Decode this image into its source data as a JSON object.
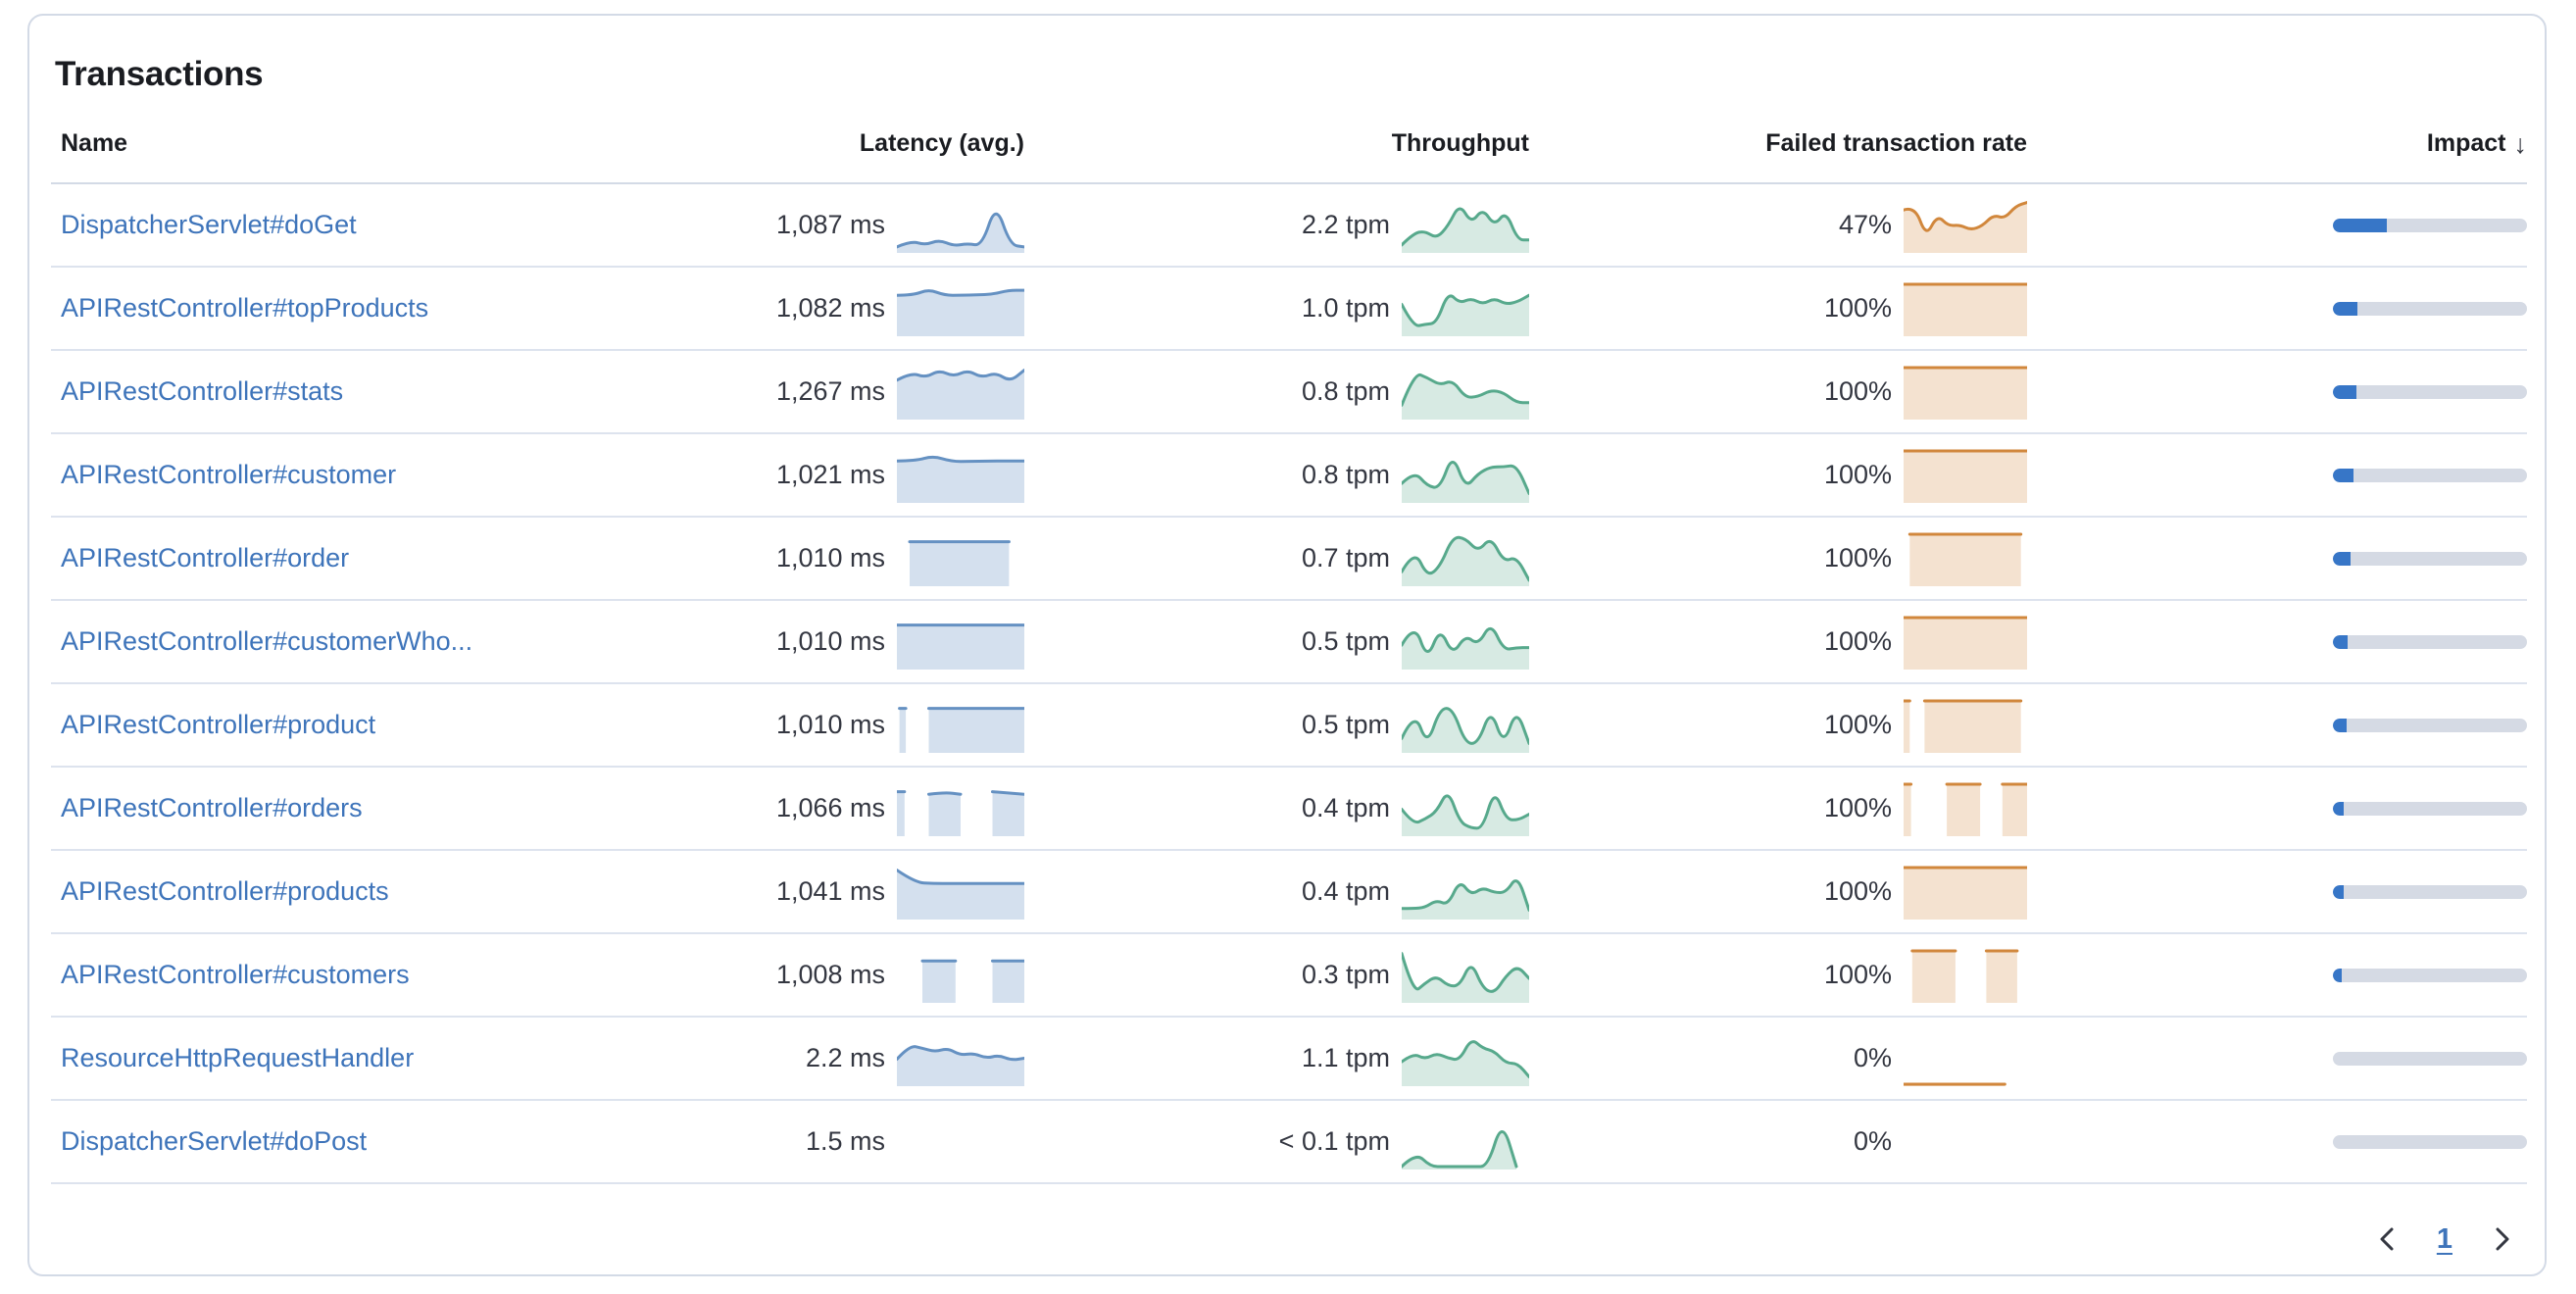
{
  "panel": {
    "title": "Transactions"
  },
  "table": {
    "columns": [
      {
        "label": "Name"
      },
      {
        "label": "Latency (avg.)"
      },
      {
        "label": "Throughput"
      },
      {
        "label": "Failed transaction rate"
      },
      {
        "label": "Impact",
        "sort": "descending",
        "sort_icon": "↓"
      }
    ],
    "rows": [
      {
        "name": "DispatcherServlet#doGet",
        "latency": "1,087 ms",
        "throughput": "2.2 tpm",
        "failed_rate": "47%",
        "impact_pct": 28,
        "latency_spark": [
          {
            "span": [
              0,
              1
            ],
            "v": [
              0.08,
              0.2,
              0.12,
              0.22,
              0.1,
              0.15,
              0.1,
              0.95,
              0.12,
              0.08
            ]
          }
        ],
        "throughput_spark": [
          {
            "span": [
              0,
              1
            ],
            "v": [
              0.12,
              0.35,
              0.4,
              0.25,
              0.5,
              0.95,
              0.55,
              0.85,
              0.5,
              0.8,
              0.22,
              0.22
            ]
          }
        ],
        "failed_spark": [
          {
            "span": [
              0,
              1
            ],
            "v": [
              0.82,
              0.9,
              0.28,
              0.72,
              0.5,
              0.52,
              0.42,
              0.5,
              0.72,
              0.65,
              0.9,
              0.97
            ]
          }
        ]
      },
      {
        "name": "APIRestController#topProducts",
        "latency": "1,082 ms",
        "throughput": "1.0 tpm",
        "failed_rate": "100%",
        "impact_pct": 12.5,
        "latency_spark": [
          {
            "span": [
              0,
              1
            ],
            "v": [
              0.78,
              0.78,
              0.9,
              0.78,
              0.78,
              0.79,
              0.8,
              0.88,
              0.88
            ]
          }
        ],
        "throughput_spark": [
          {
            "span": [
              0,
              1
            ],
            "v": [
              0.6,
              0.15,
              0.2,
              0.22,
              0.85,
              0.62,
              0.72,
              0.6,
              0.72,
              0.6,
              0.65,
              0.78
            ]
          }
        ],
        "failed_spark": [
          {
            "span": [
              0,
              1
            ],
            "v": [
              1,
              1,
              1,
              1
            ]
          }
        ]
      },
      {
        "name": "APIRestController#stats",
        "latency": "1,267 ms",
        "throughput": "0.8 tpm",
        "failed_rate": "100%",
        "impact_pct": 12,
        "latency_spark": [
          {
            "span": [
              0,
              1
            ],
            "v": [
              0.75,
              0.9,
              0.8,
              0.95,
              0.82,
              0.95,
              0.8,
              0.9,
              0.72,
              0.95
            ]
          }
        ],
        "throughput_spark": [
          {
            "span": [
              0,
              1
            ],
            "v": [
              0.25,
              0.9,
              0.8,
              0.65,
              0.75,
              0.4,
              0.42,
              0.55,
              0.5,
              0.3,
              0.3
            ]
          }
        ],
        "failed_spark": [
          {
            "span": [
              0,
              1
            ],
            "v": [
              1,
              1,
              1,
              1
            ]
          }
        ]
      },
      {
        "name": "APIRestController#customer",
        "latency": "1,021 ms",
        "throughput": "0.8 tpm",
        "failed_rate": "100%",
        "impact_pct": 10.5,
        "latency_spark": [
          {
            "span": [
              0,
              1
            ],
            "v": [
              0.8,
              0.8,
              0.9,
              0.79,
              0.79,
              0.8,
              0.8,
              0.8
            ]
          }
        ],
        "throughput_spark": [
          {
            "span": [
              0,
              1
            ],
            "v": [
              0.35,
              0.6,
              0.3,
              0.25,
              0.95,
              0.25,
              0.55,
              0.68,
              0.68,
              0.72,
              0.15
            ]
          }
        ],
        "failed_spark": [
          {
            "span": [
              0,
              1
            ],
            "v": [
              1,
              1,
              1,
              1
            ]
          }
        ]
      },
      {
        "name": "APIRestController#order",
        "latency": "1,010 ms",
        "throughput": "0.7 tpm",
        "failed_rate": "100%",
        "impact_pct": 9,
        "latency_spark": [
          {
            "span": [
              0.1,
              0.88
            ],
            "v": [
              0.85,
              0.85,
              0.85
            ]
          }
        ],
        "throughput_spark": [
          {
            "span": [
              0,
              1
            ],
            "v": [
              0.25,
              0.7,
              0.15,
              0.35,
              0.95,
              0.92,
              0.65,
              0.95,
              0.45,
              0.55,
              0.08
            ]
          }
        ],
        "failed_spark": [
          {
            "span": [
              0.05,
              0.95
            ],
            "v": [
              1,
              1,
              1
            ]
          }
        ]
      },
      {
        "name": "APIRestController#customerWho...",
        "latency": "1,010 ms",
        "throughput": "0.5 tpm",
        "failed_rate": "100%",
        "impact_pct": 7.5,
        "latency_spark": [
          {
            "span": [
              0,
              1
            ],
            "v": [
              0.85,
              0.85,
              0.85,
              0.85
            ]
          }
        ],
        "throughput_spark": [
          {
            "span": [
              0,
              1
            ],
            "v": [
              0.45,
              0.9,
              0.15,
              0.8,
              0.25,
              0.65,
              0.45,
              0.9,
              0.35,
              0.4,
              0.4
            ]
          }
        ],
        "failed_spark": [
          {
            "span": [
              0,
              1
            ],
            "v": [
              1,
              1,
              1,
              1
            ]
          }
        ]
      },
      {
        "name": "APIRestController#product",
        "latency": "1,010 ms",
        "throughput": "0.5 tpm",
        "failed_rate": "100%",
        "impact_pct": 7,
        "latency_spark": [
          {
            "span": [
              0.02,
              0.07
            ],
            "v": [
              0.85,
              0.85
            ]
          },
          {
            "span": [
              0.25,
              1
            ],
            "v": [
              0.85,
              0.85,
              0.85
            ]
          }
        ],
        "throughput_spark": [
          {
            "span": [
              0,
              1
            ],
            "v": [
              0.25,
              0.8,
              0.1,
              0.85,
              0.85,
              0.15,
              0.15,
              0.85,
              0.1,
              0.85,
              0.15
            ]
          }
        ],
        "failed_spark": [
          {
            "span": [
              0,
              0.05
            ],
            "v": [
              1,
              1
            ]
          },
          {
            "span": [
              0.17,
              0.95
            ],
            "v": [
              1,
              1,
              1
            ]
          }
        ]
      },
      {
        "name": "APIRestController#orders",
        "latency": "1,066 ms",
        "throughput": "0.4 tpm",
        "failed_rate": "100%",
        "impact_pct": 5.5,
        "latency_spark": [
          {
            "span": [
              0,
              0.06
            ],
            "v": [
              0.85,
              0.85
            ]
          },
          {
            "span": [
              0.25,
              0.5
            ],
            "v": [
              0.8,
              0.84,
              0.8
            ]
          },
          {
            "span": [
              0.75,
              1
            ],
            "v": [
              0.85,
              0.8
            ]
          }
        ],
        "throughput_spark": [
          {
            "span": [
              0,
              1
            ],
            "v": [
              0.5,
              0.2,
              0.3,
              0.45,
              0.9,
              0.25,
              0.12,
              0.12,
              0.9,
              0.3,
              0.28,
              0.4
            ]
          }
        ],
        "failed_spark": [
          {
            "span": [
              0,
              0.06
            ],
            "v": [
              1,
              1
            ]
          },
          {
            "span": [
              0.35,
              0.62
            ],
            "v": [
              1,
              1
            ]
          },
          {
            "span": [
              0.8,
              1
            ],
            "v": [
              1,
              1
            ]
          }
        ]
      },
      {
        "name": "APIRestController#products",
        "latency": "1,041 ms",
        "throughput": "0.4 tpm",
        "failed_rate": "100%",
        "impact_pct": 5.5,
        "latency_spark": [
          {
            "span": [
              0,
              1
            ],
            "v": [
              0.95,
              0.7,
              0.68,
              0.68,
              0.68,
              0.68,
              0.68,
              0.68
            ]
          }
        ],
        "throughput_spark": [
          {
            "span": [
              0,
              1
            ],
            "v": [
              0.18,
              0.18,
              0.2,
              0.35,
              0.25,
              0.75,
              0.45,
              0.6,
              0.5,
              0.5,
              0.85,
              0.15
            ]
          }
        ],
        "failed_spark": [
          {
            "span": [
              0,
              1
            ],
            "v": [
              1,
              1,
              1,
              1
            ]
          }
        ]
      },
      {
        "name": "APIRestController#customers",
        "latency": "1,008 ms",
        "throughput": "0.3 tpm",
        "failed_rate": "100%",
        "impact_pct": 4.5,
        "latency_spark": [
          {
            "span": [
              0.2,
              0.46
            ],
            "v": [
              0.8,
              0.8
            ]
          },
          {
            "span": [
              0.75,
              1
            ],
            "v": [
              0.8,
              0.8
            ]
          }
        ],
        "throughput_spark": [
          {
            "span": [
              0,
              1
            ],
            "v": [
              0.95,
              0.15,
              0.35,
              0.5,
              0.3,
              0.3,
              0.8,
              0.25,
              0.15,
              0.5,
              0.7,
              0.45
            ]
          }
        ],
        "failed_spark": [
          {
            "span": [
              0.07,
              0.42
            ],
            "v": [
              1,
              1
            ]
          },
          {
            "span": [
              0.67,
              0.92
            ],
            "v": [
              1,
              1
            ]
          }
        ]
      },
      {
        "name": "ResourceHttpRequestHandler",
        "latency": "2.2 ms",
        "throughput": "1.1 tpm",
        "failed_rate": "0%",
        "impact_pct": 0,
        "latency_spark": [
          {
            "span": [
              0,
              1
            ],
            "v": [
              0.5,
              0.78,
              0.72,
              0.65,
              0.72,
              0.58,
              0.62,
              0.52,
              0.58,
              0.48,
              0.52
            ]
          }
        ],
        "throughput_spark": [
          {
            "span": [
              0,
              1
            ],
            "v": [
              0.45,
              0.62,
              0.5,
              0.62,
              0.52,
              0.48,
              0.92,
              0.72,
              0.66,
              0.42,
              0.42,
              0.15
            ]
          }
        ],
        "failed_spark": [
          {
            "span": [
              0,
              0.82
            ],
            "v": [
              0,
              0
            ]
          }
        ]
      },
      {
        "name": "DispatcherServlet#doPost",
        "latency": "1.5 ms",
        "throughput": "< 0.1 tpm",
        "failed_rate": "0%",
        "impact_pct": 0,
        "latency_spark": [],
        "throughput_spark": [
          {
            "span": [
              0,
              0.9
            ],
            "v": [
              0.02,
              0.3,
              0.02,
              0.02,
              0.02,
              0.02,
              0.02,
              0.95,
              0.02
            ]
          }
        ],
        "failed_spark": []
      }
    ]
  },
  "pagination": {
    "previous_icon": "chevron-left",
    "current_page": "1",
    "next_icon": "chevron-right"
  },
  "colors": {
    "link": "#3E74BA",
    "latency_line": "#6591C2",
    "latency_fill": "rgba(101,145,194,0.28)",
    "throughput_line": "#57A98C",
    "throughput_fill": "rgba(87,169,140,0.24)",
    "failed_line": "#D1873C",
    "failed_fill": "rgba(209,135,60,0.24)",
    "impact_fill": "#3776C7",
    "impact_track": "#D5DAE4"
  }
}
